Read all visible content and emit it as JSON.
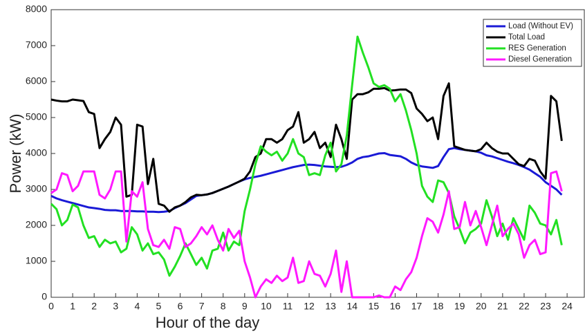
{
  "chart_data": {
    "type": "line",
    "xlabel": "Hour of the day",
    "ylabel": "Power (kW)",
    "x": [
      0,
      0.25,
      0.5,
      0.75,
      1,
      1.25,
      1.5,
      1.75,
      2,
      2.25,
      2.5,
      2.75,
      3,
      3.25,
      3.5,
      3.75,
      4,
      4.25,
      4.5,
      4.75,
      5,
      5.25,
      5.5,
      5.75,
      6,
      6.25,
      6.5,
      6.75,
      7,
      7.25,
      7.5,
      7.75,
      8,
      8.25,
      8.5,
      8.75,
      9,
      9.25,
      9.5,
      9.75,
      10,
      10.25,
      10.5,
      10.75,
      11,
      11.25,
      11.5,
      11.75,
      12,
      12.25,
      12.5,
      12.75,
      13,
      13.25,
      13.5,
      13.75,
      14,
      14.25,
      14.5,
      14.75,
      15,
      15.25,
      15.5,
      15.75,
      16,
      16.25,
      16.5,
      16.75,
      17,
      17.25,
      17.5,
      17.75,
      18,
      18.25,
      18.5,
      18.75,
      19,
      19.25,
      19.5,
      19.75,
      20,
      20.25,
      20.5,
      20.75,
      21,
      21.25,
      21.5,
      21.75,
      22,
      22.25,
      22.5,
      22.75,
      23,
      23.25,
      23.5,
      23.75
    ],
    "series": [
      {
        "name": "Load (Without EV)",
        "color": "#1a1ad6",
        "values": [
          2820,
          2750,
          2700,
          2660,
          2620,
          2580,
          2540,
          2500,
          2480,
          2460,
          2430,
          2420,
          2420,
          2400,
          2400,
          2400,
          2390,
          2390,
          2380,
          2380,
          2370,
          2380,
          2400,
          2480,
          2550,
          2620,
          2720,
          2820,
          2840,
          2860,
          2900,
          2960,
          3020,
          3080,
          3150,
          3220,
          3280,
          3320,
          3350,
          3380,
          3420,
          3460,
          3500,
          3540,
          3580,
          3620,
          3650,
          3680,
          3690,
          3680,
          3660,
          3640,
          3630,
          3620,
          3630,
          3680,
          3750,
          3850,
          3900,
          3920,
          3960,
          4000,
          4010,
          3960,
          3940,
          3920,
          3850,
          3750,
          3680,
          3640,
          3620,
          3600,
          3650,
          3900,
          4120,
          4150,
          4120,
          4100,
          4080,
          4060,
          4020,
          3950,
          3920,
          3870,
          3820,
          3770,
          3730,
          3680,
          3620,
          3550,
          3450,
          3350,
          3200,
          3100,
          3000,
          2850
        ]
      },
      {
        "name": "Total Load",
        "color": "#000000",
        "values": [
          5500,
          5470,
          5450,
          5450,
          5500,
          5480,
          5460,
          5150,
          5100,
          4150,
          4400,
          4600,
          5000,
          4800,
          2800,
          2850,
          4800,
          4750,
          3150,
          3850,
          2600,
          2550,
          2380,
          2500,
          2550,
          2650,
          2780,
          2850,
          2840,
          2860,
          2900,
          2960,
          3020,
          3080,
          3150,
          3220,
          3300,
          3500,
          3900,
          4000,
          4400,
          4400,
          4300,
          4400,
          4650,
          4750,
          5150,
          4300,
          4400,
          4600,
          4150,
          4300,
          3900,
          4800,
          4400,
          3850,
          5500,
          5650,
          5650,
          5700,
          5800,
          5800,
          5820,
          5750,
          5760,
          5780,
          5780,
          5680,
          5250,
          5100,
          4900,
          5000,
          4400,
          5600,
          5950,
          4200,
          4150,
          4100,
          4080,
          4060,
          4120,
          4300,
          4150,
          4050,
          4000,
          4000,
          3850,
          3700,
          3650,
          3850,
          3800,
          3500,
          3300,
          5600,
          5450,
          4350
        ]
      },
      {
        "name": "RES Generation",
        "color": "#22e022",
        "values": [
          2600,
          2450,
          2000,
          2150,
          2580,
          2500,
          2000,
          1650,
          1700,
          1400,
          1600,
          1500,
          1550,
          1250,
          1350,
          1950,
          1750,
          1300,
          1500,
          1200,
          1250,
          1050,
          600,
          850,
          1150,
          1500,
          1200,
          900,
          1100,
          800,
          1300,
          1350,
          1800,
          1300,
          1550,
          1450,
          2400,
          3000,
          3700,
          4200,
          4050,
          3950,
          4050,
          3800,
          4000,
          4400,
          4000,
          3900,
          3400,
          3450,
          3400,
          3950,
          4300,
          3500,
          3700,
          4500,
          5900,
          7250,
          6800,
          6400,
          5950,
          5850,
          5900,
          5800,
          5450,
          5650,
          5200,
          4650,
          4000,
          3100,
          2800,
          2650,
          3250,
          3200,
          2900,
          2250,
          1900,
          1500,
          1800,
          1900,
          2050,
          2700,
          2250,
          1700,
          2050,
          1600,
          2200,
          1900,
          1600,
          2550,
          2350,
          2050,
          2000,
          1750,
          2150,
          1450
        ]
      },
      {
        "name": "Diesel Generation",
        "color": "#ff19ff",
        "values": [
          2900,
          3000,
          3450,
          3400,
          2950,
          3100,
          3500,
          3500,
          3500,
          2850,
          2750,
          3000,
          3500,
          3500,
          1550,
          2950,
          2800,
          3200,
          1900,
          1450,
          1400,
          1600,
          1350,
          1950,
          1900,
          1400,
          1500,
          1700,
          1950,
          1750,
          2000,
          1600,
          1300,
          1900,
          1650,
          1850,
          1000,
          550,
          0,
          300,
          500,
          400,
          600,
          450,
          550,
          1100,
          400,
          450,
          1000,
          650,
          600,
          300,
          650,
          1300,
          150,
          1000,
          0,
          0,
          0,
          0,
          0,
          50,
          0,
          0,
          300,
          200,
          500,
          700,
          1100,
          1700,
          2200,
          2100,
          1800,
          2300,
          2950,
          1900,
          1950,
          2650,
          2000,
          2400,
          1950,
          1450,
          2000,
          2550,
          1700,
          1900,
          2050,
          1750,
          1100,
          1450,
          1600,
          1200,
          1250,
          3450,
          3500,
          2950
        ]
      }
    ],
    "xlim": [
      0,
      24.8
    ],
    "ylim": [
      0,
      8000
    ],
    "xticks": [
      0,
      1,
      2,
      3,
      4,
      5,
      6,
      7,
      8,
      9,
      10,
      11,
      12,
      13,
      14,
      15,
      16,
      17,
      18,
      19,
      20,
      21,
      22,
      23,
      24
    ],
    "yticks": [
      0,
      1000,
      2000,
      3000,
      4000,
      5000,
      6000,
      7000,
      8000
    ],
    "grid": false,
    "legend": "top-right"
  }
}
